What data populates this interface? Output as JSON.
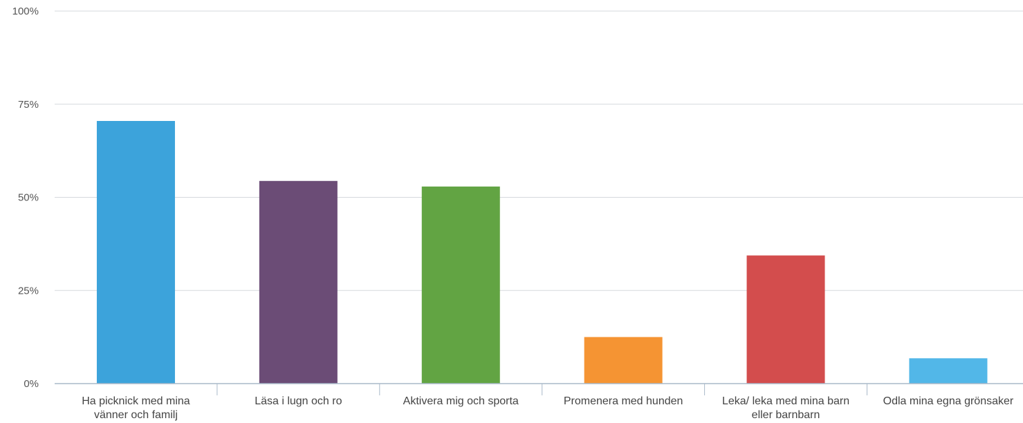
{
  "chart_data": {
    "type": "bar",
    "categories": [
      [
        "Ha picknick med mina",
        "vänner och familj"
      ],
      [
        "Läsa i lugn och ro"
      ],
      [
        "Aktivera mig och sporta"
      ],
      [
        "Promenera med hunden"
      ],
      [
        "Leka/ leka med mina barn",
        "eller barnbarn"
      ],
      [
        "Odla mina egna grönsaker"
      ]
    ],
    "values": [
      70.5,
      54.4,
      52.9,
      12.5,
      34.4,
      6.8
    ],
    "colors": [
      "#3ca3db",
      "#6b4c76",
      "#62a443",
      "#f59433",
      "#d34d4d",
      "#52b7e8"
    ],
    "ylim": [
      0,
      100
    ],
    "yticks": [
      0,
      25,
      50,
      75,
      100
    ],
    "ytick_labels": [
      "0%",
      "25%",
      "50%",
      "75%",
      "100%"
    ],
    "grid": true,
    "title": "",
    "xlabel": "",
    "ylabel": ""
  }
}
